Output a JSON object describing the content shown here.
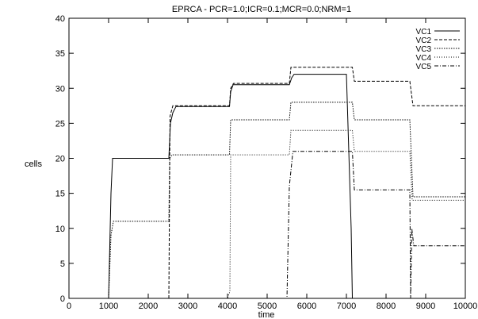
{
  "chart_data": {
    "type": "line",
    "title": "EPRCA - PCR=1.0;ICR=0.1;MCR=0.0;NRM=1",
    "xlabel": "time",
    "ylabel": "cells",
    "xlim": [
      0,
      10000
    ],
    "ylim": [
      0,
      40
    ],
    "xticks": [
      0,
      1000,
      2000,
      3000,
      4000,
      5000,
      6000,
      7000,
      8000,
      9000,
      10000
    ],
    "yticks": [
      0,
      5,
      10,
      15,
      20,
      25,
      30,
      35,
      40
    ],
    "grid": false,
    "legend_position": "top-right",
    "series": [
      {
        "name": "VC1",
        "style": "solid",
        "points": [
          [
            0,
            0
          ],
          [
            1000,
            0
          ],
          [
            1060,
            15
          ],
          [
            1100,
            20
          ],
          [
            2520,
            20
          ],
          [
            2560,
            25
          ],
          [
            2620,
            26.5
          ],
          [
            2700,
            27.4
          ],
          [
            4050,
            27.4
          ],
          [
            4080,
            29.5
          ],
          [
            4140,
            30.5
          ],
          [
            5560,
            30.5
          ],
          [
            5620,
            31.5
          ],
          [
            5680,
            32
          ],
          [
            7000,
            32
          ],
          [
            7120,
            10
          ],
          [
            7150,
            0
          ],
          [
            10000,
            0
          ]
        ]
      },
      {
        "name": "VC2",
        "style": "dashed",
        "points": [
          [
            0,
            0
          ],
          [
            2520,
            0
          ],
          [
            2550,
            26
          ],
          [
            2620,
            27.5
          ],
          [
            4050,
            27.5
          ],
          [
            4080,
            30
          ],
          [
            4150,
            30.7
          ],
          [
            5560,
            30.7
          ],
          [
            5600,
            33
          ],
          [
            7150,
            33
          ],
          [
            7200,
            31
          ],
          [
            8600,
            31
          ],
          [
            8680,
            27.5
          ],
          [
            10000,
            27.5
          ]
        ]
      },
      {
        "name": "VC3",
        "style": "dotted",
        "points": [
          [
            0,
            0
          ],
          [
            1000,
            0
          ],
          [
            1060,
            9
          ],
          [
            1120,
            11
          ],
          [
            2520,
            11
          ],
          [
            2540,
            20
          ],
          [
            2600,
            20.5
          ],
          [
            4050,
            20.5
          ],
          [
            4080,
            25.5
          ],
          [
            5560,
            25.5
          ],
          [
            5600,
            28
          ],
          [
            7150,
            28
          ],
          [
            7200,
            25.5
          ],
          [
            8600,
            25.5
          ],
          [
            8680,
            14.5
          ],
          [
            10000,
            14.5
          ]
        ]
      },
      {
        "name": "VC4",
        "style": "fine-dotted",
        "points": [
          [
            0,
            0
          ],
          [
            4000,
            0
          ],
          [
            4060,
            1
          ],
          [
            4080,
            20.5
          ],
          [
            5560,
            20.5
          ],
          [
            5600,
            24
          ],
          [
            7150,
            24
          ],
          [
            7200,
            21
          ],
          [
            8600,
            21
          ],
          [
            8660,
            14
          ],
          [
            10000,
            14
          ]
        ]
      },
      {
        "name": "VC5",
        "style": "dash-dot",
        "points": [
          [
            0,
            0
          ],
          [
            5500,
            0
          ],
          [
            5560,
            16
          ],
          [
            5650,
            21
          ],
          [
            7150,
            21
          ],
          [
            7200,
            15.5
          ],
          [
            8600,
            15.5
          ],
          [
            8620,
            0
          ],
          [
            8650,
            10
          ],
          [
            8700,
            7.5
          ],
          [
            10000,
            7.5
          ]
        ]
      }
    ]
  }
}
